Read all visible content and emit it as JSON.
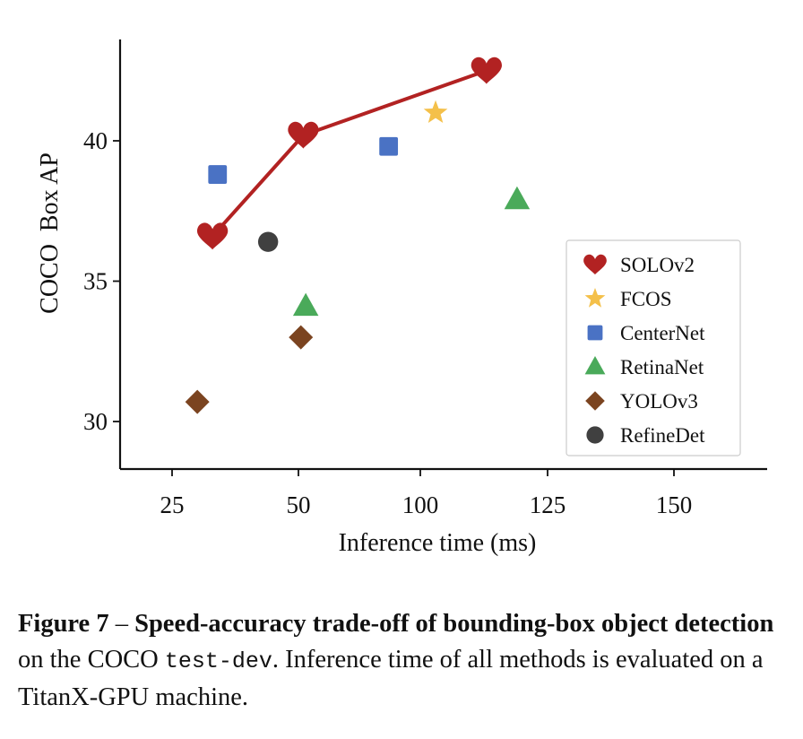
{
  "chart_data": {
    "type": "scatter",
    "xlabel": "Inference time (ms)",
    "ylabel": "COCO  Box AP",
    "x_ticks": [
      25,
      50,
      100,
      125,
      150
    ],
    "y_ticks": [
      30,
      35,
      40
    ],
    "grid": false,
    "legend_position": "right",
    "series": [
      {
        "name": "SOLOv2",
        "marker": "heart",
        "color": "#b22222",
        "line": true,
        "points": [
          {
            "x": 33,
            "y": 36.6
          },
          {
            "x": 52,
            "y": 40.2
          },
          {
            "x": 113,
            "y": 42.5
          }
        ]
      },
      {
        "name": "FCOS",
        "marker": "star",
        "color": "#f4c04a",
        "line": false,
        "points": [
          {
            "x": 103,
            "y": 41.0
          }
        ]
      },
      {
        "name": "CenterNet",
        "marker": "square",
        "color": "#4a72c4",
        "line": false,
        "points": [
          {
            "x": 34,
            "y": 38.8
          },
          {
            "x": 87,
            "y": 39.8
          }
        ]
      },
      {
        "name": "RetinaNet",
        "marker": "triangle",
        "color": "#4aaa5a",
        "line": false,
        "points": [
          {
            "x": 53,
            "y": 34.1
          },
          {
            "x": 119,
            "y": 37.9
          }
        ]
      },
      {
        "name": "YOLOv3",
        "marker": "diamond",
        "color": "#7b4420",
        "line": false,
        "points": [
          {
            "x": 30,
            "y": 30.7
          },
          {
            "x": 51,
            "y": 33.0
          }
        ]
      },
      {
        "name": "RefineDet",
        "marker": "circle",
        "color": "#404040",
        "line": false,
        "points": [
          {
            "x": 44,
            "y": 36.4
          }
        ]
      }
    ]
  },
  "caption": {
    "label": "Figure 7",
    "dash": " – ",
    "bold_text": "Speed-accuracy trade-off of bounding-box object detection",
    "text_1": " on the COCO ",
    "mono_text": "test-dev",
    "text_2": ". Inference time of all methods is evaluated on a TitanX-GPU machine."
  }
}
